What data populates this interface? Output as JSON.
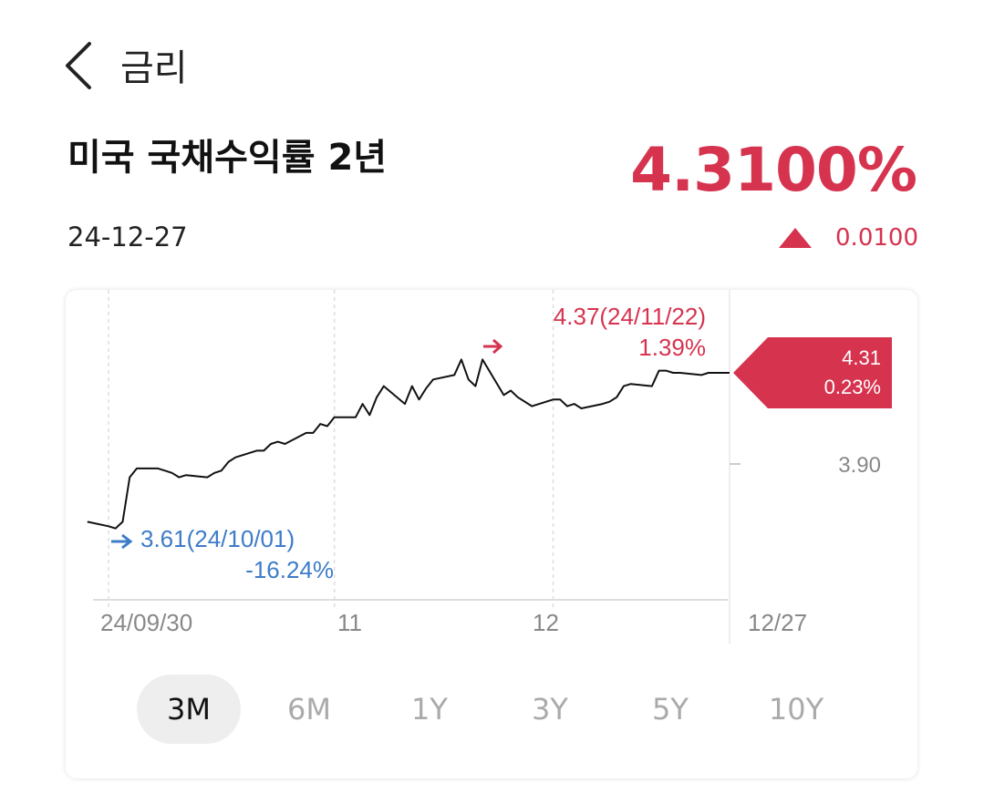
{
  "header": {
    "title": "금리"
  },
  "instrument": {
    "title": "미국 국채수익률 2년",
    "price": "4.3100%",
    "date": "24-12-27",
    "change": "0.0100"
  },
  "colors": {
    "up": "#d6334f",
    "down": "#3d7cc9",
    "line": "#111111"
  },
  "chart_data": {
    "type": "line",
    "x_tick_labels": [
      "24/09/30",
      "11",
      "12",
      "12/27"
    ],
    "y_tick_labels": [
      "3.90"
    ],
    "max_label": {
      "value": "4.37(24/11/22)",
      "pct": "1.39%"
    },
    "min_label": {
      "value": "3.61(24/10/01)",
      "pct": "-16.24%"
    },
    "current_label": {
      "value": "4.31",
      "pct": "0.23%"
    },
    "ylim": [
      3.5,
      4.45
    ],
    "x": [
      "2024-09-27",
      "2024-09-30",
      "2024-10-01",
      "2024-10-02",
      "2024-10-03",
      "2024-10-04",
      "2024-10-07",
      "2024-10-08",
      "2024-10-09",
      "2024-10-10",
      "2024-10-11",
      "2024-10-14",
      "2024-10-15",
      "2024-10-16",
      "2024-10-17",
      "2024-10-18",
      "2024-10-21",
      "2024-10-22",
      "2024-10-23",
      "2024-10-24",
      "2024-10-25",
      "2024-10-28",
      "2024-10-29",
      "2024-10-30",
      "2024-10-31",
      "2024-11-01",
      "2024-11-04",
      "2024-11-05",
      "2024-11-06",
      "2024-11-07",
      "2024-11-08",
      "2024-11-11",
      "2024-11-12",
      "2024-11-13",
      "2024-11-14",
      "2024-11-15",
      "2024-11-18",
      "2024-11-19",
      "2024-11-20",
      "2024-11-21",
      "2024-11-22",
      "2024-11-25",
      "2024-11-26",
      "2024-11-27",
      "2024-11-29",
      "2024-12-02",
      "2024-12-03",
      "2024-12-04",
      "2024-12-05",
      "2024-12-06",
      "2024-12-09",
      "2024-12-10",
      "2024-12-11",
      "2024-12-12",
      "2024-12-13",
      "2024-12-16",
      "2024-12-17",
      "2024-12-18",
      "2024-12-19",
      "2024-12-20",
      "2024-12-23",
      "2024-12-24",
      "2024-12-26",
      "2024-12-27"
    ],
    "values": [
      3.64,
      3.62,
      3.61,
      3.64,
      3.84,
      3.88,
      3.88,
      3.87,
      3.86,
      3.84,
      3.85,
      3.84,
      3.86,
      3.87,
      3.91,
      3.93,
      3.96,
      3.96,
      3.99,
      4.0,
      3.99,
      4.04,
      4.04,
      4.08,
      4.07,
      4.11,
      4.11,
      4.17,
      4.12,
      4.2,
      4.25,
      4.17,
      4.25,
      4.19,
      4.24,
      4.28,
      4.3,
      4.37,
      4.28,
      4.25,
      4.37,
      4.21,
      4.23,
      4.2,
      4.16,
      4.19,
      4.19,
      4.16,
      4.17,
      4.15,
      4.17,
      4.18,
      4.2,
      4.25,
      4.26,
      4.25,
      4.32,
      4.32,
      4.31,
      4.31,
      4.3,
      4.31,
      4.31,
      4.31
    ]
  },
  "tabs": [
    {
      "label": "3M",
      "active": true
    },
    {
      "label": "6M",
      "active": false
    },
    {
      "label": "1Y",
      "active": false
    },
    {
      "label": "3Y",
      "active": false
    },
    {
      "label": "5Y",
      "active": false
    },
    {
      "label": "10Y",
      "active": false
    }
  ]
}
